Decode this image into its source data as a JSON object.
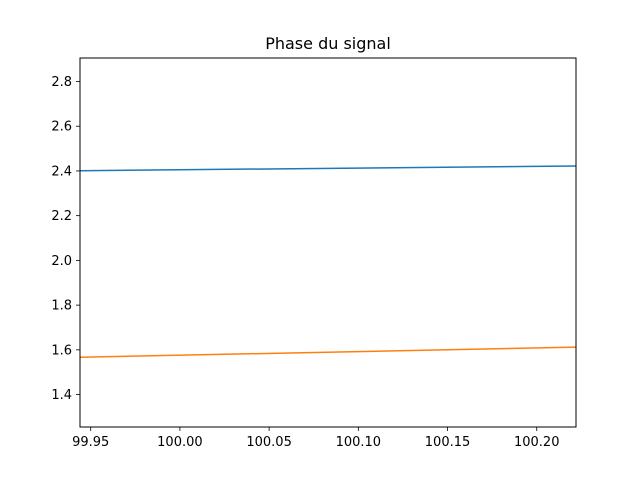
{
  "chart_data": {
    "type": "line",
    "title": "Phase du signal",
    "xlabel": "",
    "ylabel": "",
    "xlim": [
      99.944,
      100.222
    ],
    "ylim": [
      1.255,
      2.905
    ],
    "grid": false,
    "xticks": [
      "99.95",
      "100.00",
      "100.05",
      "100.10",
      "100.15",
      "100.20"
    ],
    "yticks": [
      "1.4",
      "1.6",
      "1.8",
      "2.0",
      "2.2",
      "2.4",
      "2.6",
      "2.8"
    ],
    "series": [
      {
        "color": "#1f77b4",
        "x": [
          99.944,
          100.222
        ],
        "y": [
          2.401,
          2.422
        ]
      },
      {
        "color": "#ff7f0e",
        "x": [
          99.944,
          100.222
        ],
        "y": [
          1.567,
          1.612
        ]
      }
    ]
  }
}
